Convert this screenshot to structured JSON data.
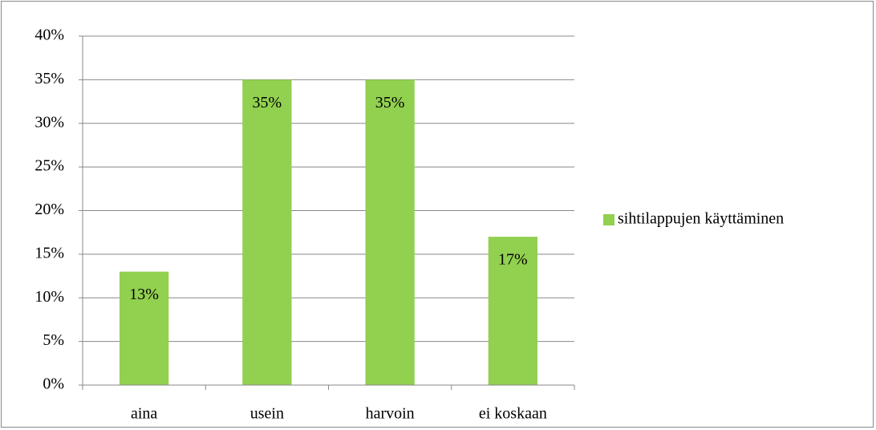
{
  "chart_data": {
    "type": "bar",
    "categories": [
      "aina",
      "usein",
      "harvoin",
      "ei koskaan"
    ],
    "series": [
      {
        "name": "sihtilappujen käyttäminen",
        "color": "#92d050",
        "values": [
          13,
          35,
          35,
          17
        ],
        "value_labels": [
          "13%",
          "35%",
          "35%",
          "17%"
        ]
      }
    ],
    "ylim": [
      0,
      40
    ],
    "yticks": [
      {
        "value": 0,
        "label": "0%"
      },
      {
        "value": 5,
        "label": "5%"
      },
      {
        "value": 10,
        "label": "10%"
      },
      {
        "value": 15,
        "label": "15%"
      },
      {
        "value": 20,
        "label": "20%"
      },
      {
        "value": 25,
        "label": "25%"
      },
      {
        "value": 30,
        "label": "30%"
      },
      {
        "value": 35,
        "label": "35%"
      },
      {
        "value": 40,
        "label": "40%"
      }
    ],
    "grid": true,
    "legend": "right"
  }
}
